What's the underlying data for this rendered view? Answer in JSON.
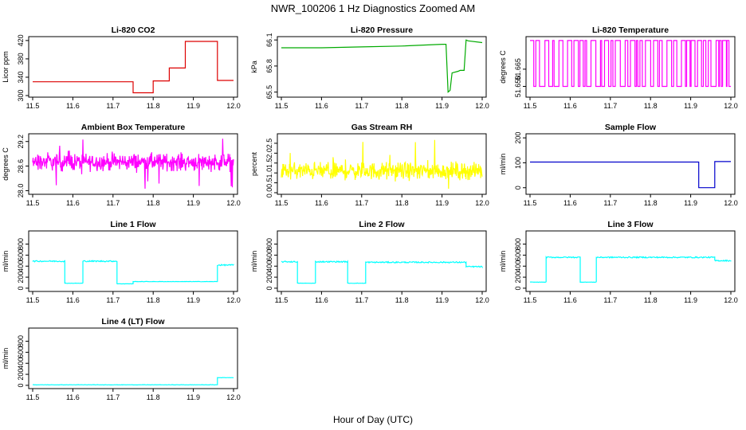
{
  "figure": {
    "title": "NWR_100206  1 Hz Diagnostics Zoomed AM",
    "xlabel": "Hour of Day (UTC)"
  },
  "chart_data": [
    {
      "type": "line",
      "title": "Li-820 CO2",
      "ylabel": "Licor ppm",
      "color": "#dd0000",
      "xlim": [
        11.5,
        12.0
      ],
      "ylim": [
        300,
        425
      ],
      "yticks": [
        300,
        340,
        380,
        420
      ],
      "ytick_labels": [
        "300",
        "340",
        "380",
        "420"
      ],
      "x": [
        11.5,
        11.75,
        11.75,
        11.8,
        11.8,
        11.84,
        11.84,
        11.88,
        11.88,
        11.96,
        11.96,
        12.0
      ],
      "y": [
        330,
        330,
        306,
        306,
        332,
        332,
        360,
        360,
        418,
        418,
        333,
        333
      ]
    },
    {
      "type": "line",
      "title": "Li-820 Pressure",
      "ylabel": "kPa",
      "color": "#00aa00",
      "xlim": [
        11.5,
        12.0
      ],
      "ylim": [
        65.46,
        66.12
      ],
      "yticks": [
        65.5,
        65.8,
        66.1
      ],
      "ytick_labels": [
        "65.5",
        "65.8",
        "66.1"
      ],
      "x": [
        11.5,
        11.58,
        11.6,
        11.7,
        11.8,
        11.9,
        11.91,
        11.915,
        11.92,
        11.925,
        11.94,
        11.945,
        11.955,
        11.96,
        11.965,
        12.0
      ],
      "y": [
        66.01,
        66.01,
        66.01,
        66.02,
        66.03,
        66.05,
        66.05,
        65.5,
        65.52,
        65.72,
        65.74,
        65.75,
        65.75,
        66.1,
        66.09,
        66.07
      ]
    },
    {
      "type": "line",
      "title": "Li-820 Temperature",
      "ylabel": "degrees C",
      "color": "#ff00ff",
      "xlim": [
        11.5,
        12.0
      ],
      "ylim": [
        51.642,
        51.692
      ],
      "yticks": [
        51.65,
        51.665
      ],
      "ytick_labels": [
        "51.650",
        "51.665"
      ],
      "pattern": "square wave toggling between 51.65 and 51.69"
    },
    {
      "type": "line",
      "title": "Ambient Box Temperature",
      "ylabel": "degrees C",
      "color": "#ff00ff",
      "xlim": [
        11.5,
        12.0
      ],
      "ylim": [
        27.95,
        29.35
      ],
      "yticks": [
        28.0,
        28.6,
        29.2
      ],
      "ytick_labels": [
        "28.0",
        "28.6",
        "29.2"
      ],
      "mean": 28.7,
      "range": [
        28.0,
        29.3
      ]
    },
    {
      "type": "line",
      "title": "Gas Stream RH",
      "ylabel": "percent",
      "color": "#ffff00",
      "xlim": [
        11.5,
        12.0
      ],
      "ylim": [
        0,
        2.9
      ],
      "yticks": [
        0.0,
        0.5,
        1.0,
        1.5,
        2.0,
        2.5
      ],
      "ytick_labels": [
        "0.0",
        "0.5",
        "1.0",
        "1.5",
        "2.0",
        "2.5"
      ],
      "mean": 1.1,
      "range": [
        0.1,
        2.8
      ]
    },
    {
      "type": "line",
      "title": "Sample Flow",
      "ylabel": "ml/min",
      "color": "#0000cc",
      "xlim": [
        11.5,
        12.0
      ],
      "ylim": [
        -20,
        210
      ],
      "yticks": [
        0,
        100,
        200
      ],
      "ytick_labels": [
        "0",
        "100",
        "200"
      ],
      "x": [
        11.5,
        11.92,
        11.92,
        11.96,
        11.96,
        12.0
      ],
      "y": [
        103,
        103,
        0,
        0,
        105,
        105
      ]
    },
    {
      "type": "line",
      "title": "Line 1 Flow",
      "ylabel": "ml/min",
      "color": "#00ffff",
      "xlim": [
        11.5,
        12.0
      ],
      "ylim": [
        -30,
        1010
      ],
      "yticks": [
        0,
        200,
        400,
        600,
        800
      ],
      "ytick_labels": [
        "0",
        "200",
        "400",
        "600",
        "800"
      ],
      "x": [
        11.5,
        11.58,
        11.58,
        11.625,
        11.625,
        11.71,
        11.71,
        11.75,
        11.75,
        11.96,
        11.96,
        12.0
      ],
      "y": [
        490,
        490,
        90,
        90,
        490,
        490,
        80,
        80,
        120,
        120,
        420,
        420
      ]
    },
    {
      "type": "line",
      "title": "Line 2 Flow",
      "ylabel": "ml/min",
      "color": "#00ffff",
      "xlim": [
        11.5,
        12.0
      ],
      "ylim": [
        -30,
        1010
      ],
      "yticks": [
        0,
        200,
        400,
        600,
        800
      ],
      "ytick_labels": [
        "0",
        "200",
        "400",
        "600",
        "800"
      ],
      "x": [
        11.5,
        11.54,
        11.54,
        11.585,
        11.585,
        11.665,
        11.665,
        11.71,
        11.71,
        11.96,
        11.96,
        12.0
      ],
      "y": [
        480,
        480,
        90,
        90,
        480,
        480,
        90,
        90,
        470,
        470,
        390,
        390
      ]
    },
    {
      "type": "line",
      "title": "Line 3 Flow",
      "ylabel": "ml/min",
      "color": "#00ffff",
      "xlim": [
        11.5,
        12.0
      ],
      "ylim": [
        -30,
        1010
      ],
      "yticks": [
        0,
        200,
        400,
        600,
        800
      ],
      "ytick_labels": [
        "0",
        "200",
        "400",
        "600",
        "800"
      ],
      "x": [
        11.5,
        11.54,
        11.54,
        11.625,
        11.625,
        11.665,
        11.665,
        11.96,
        11.96,
        12.0
      ],
      "y": [
        110,
        110,
        560,
        560,
        110,
        110,
        560,
        560,
        500,
        500
      ]
    },
    {
      "type": "line",
      "title": "Line 4 (LT) Flow",
      "ylabel": "ml/min",
      "color": "#00ffff",
      "xlim": [
        11.5,
        12.0
      ],
      "ylim": [
        -30,
        1010
      ],
      "yticks": [
        0,
        200,
        400,
        600,
        800
      ],
      "ytick_labels": [
        "0",
        "200",
        "400",
        "600",
        "800"
      ],
      "x": [
        11.5,
        11.96,
        11.96,
        12.0
      ],
      "y": [
        10,
        10,
        140,
        140
      ]
    }
  ],
  "xticks": [
    11.5,
    11.6,
    11.7,
    11.8,
    11.9,
    12.0
  ],
  "xtick_labels": [
    "11.5",
    "11.6",
    "11.7",
    "11.8",
    "11.9",
    "12.0"
  ]
}
